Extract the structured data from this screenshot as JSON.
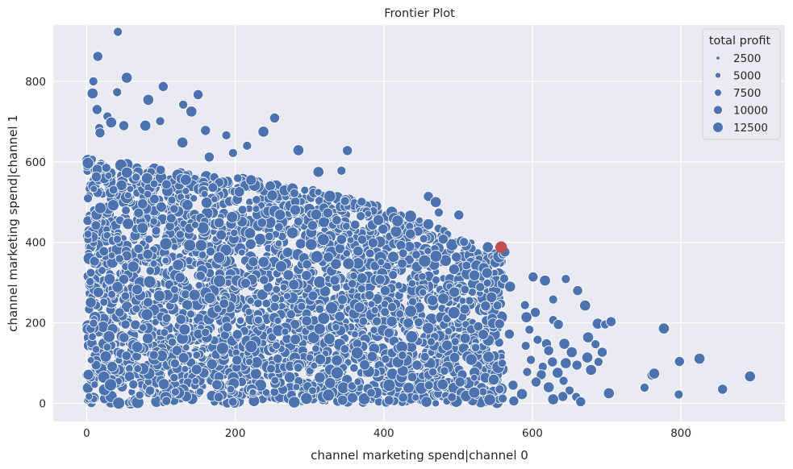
{
  "chart_data": {
    "type": "scatter",
    "title": "Frontier Plot",
    "xlabel": "channel marketing spend|channel 0",
    "ylabel": "channel marketing spend|channel 1",
    "xlim": [
      -45,
      940
    ],
    "ylim": [
      -45,
      940
    ],
    "xticks": [
      0,
      200,
      400,
      600,
      800
    ],
    "yticks": [
      0,
      200,
      400,
      600,
      800
    ],
    "grid": true,
    "style": "seaborn-darkgrid",
    "colors": {
      "background": "#EAEAF2",
      "grid": "#FFFFFF",
      "points": "#4C72B0",
      "highlight": "#C44E52",
      "point_edge": "#FFFFFF"
    },
    "legend": {
      "title": "total profit",
      "placement": "top-right",
      "size_variable": "total profit",
      "entries": [
        {
          "label": "2500",
          "value": 2500
        },
        {
          "label": "5000",
          "value": 5000
        },
        {
          "label": "7500",
          "value": 7500
        },
        {
          "label": "10000",
          "value": 10000
        },
        {
          "label": "12500",
          "value": 12500
        }
      ]
    },
    "highlight_point": {
      "x": 558,
      "y": 388,
      "color": "#C44E52"
    },
    "series": [
      {
        "kind": "dense-cloud",
        "description_of_region": "thousands of points filling the triangular region below the frontier",
        "x_range": [
          0,
          560
        ],
        "y_range": [
          0,
          620
        ],
        "point_count_approx": 3000
      },
      {
        "kind": "scatter",
        "points": [
          {
            "x": 42,
            "y": 923
          },
          {
            "x": 15,
            "y": 862
          },
          {
            "x": 54,
            "y": 809
          },
          {
            "x": 9,
            "y": 800
          },
          {
            "x": 103,
            "y": 787
          },
          {
            "x": 8,
            "y": 770
          },
          {
            "x": 41,
            "y": 773
          },
          {
            "x": 150,
            "y": 767
          },
          {
            "x": 83,
            "y": 754
          },
          {
            "x": 130,
            "y": 742
          },
          {
            "x": 14,
            "y": 730
          },
          {
            "x": 141,
            "y": 725
          },
          {
            "x": 28,
            "y": 713
          },
          {
            "x": 253,
            "y": 709
          },
          {
            "x": 33,
            "y": 698
          },
          {
            "x": 99,
            "y": 701
          },
          {
            "x": 50,
            "y": 690
          },
          {
            "x": 79,
            "y": 690
          },
          {
            "x": 17,
            "y": 684
          },
          {
            "x": 160,
            "y": 678
          },
          {
            "x": 238,
            "y": 675
          },
          {
            "x": 188,
            "y": 666
          },
          {
            "x": 18,
            "y": 672
          },
          {
            "x": 129,
            "y": 648
          },
          {
            "x": 216,
            "y": 640
          },
          {
            "x": 351,
            "y": 628
          },
          {
            "x": 285,
            "y": 629
          },
          {
            "x": 197,
            "y": 622
          },
          {
            "x": 165,
            "y": 612
          },
          {
            "x": 312,
            "y": 575
          },
          {
            "x": 343,
            "y": 578
          },
          {
            "x": 460,
            "y": 514
          },
          {
            "x": 470,
            "y": 500
          },
          {
            "x": 474,
            "y": 474
          },
          {
            "x": 501,
            "y": 468
          },
          {
            "x": 460,
            "y": 445
          },
          {
            "x": 508,
            "y": 401
          },
          {
            "x": 480,
            "y": 408
          },
          {
            "x": 540,
            "y": 388
          },
          {
            "x": 560,
            "y": 370
          },
          {
            "x": 563,
            "y": 376
          },
          {
            "x": 522,
            "y": 318
          },
          {
            "x": 562,
            "y": 310
          },
          {
            "x": 601,
            "y": 314
          },
          {
            "x": 617,
            "y": 305
          },
          {
            "x": 645,
            "y": 309
          },
          {
            "x": 661,
            "y": 280
          },
          {
            "x": 570,
            "y": 290
          },
          {
            "x": 590,
            "y": 244
          },
          {
            "x": 537,
            "y": 242
          },
          {
            "x": 671,
            "y": 243
          },
          {
            "x": 628,
            "y": 258
          },
          {
            "x": 604,
            "y": 226
          },
          {
            "x": 592,
            "y": 214
          },
          {
            "x": 628,
            "y": 207
          },
          {
            "x": 635,
            "y": 196
          },
          {
            "x": 688,
            "y": 198
          },
          {
            "x": 698,
            "y": 196
          },
          {
            "x": 706,
            "y": 203
          },
          {
            "x": 777,
            "y": 186
          },
          {
            "x": 596,
            "y": 183
          },
          {
            "x": 569,
            "y": 172
          },
          {
            "x": 675,
            "y": 164
          },
          {
            "x": 607,
            "y": 158
          },
          {
            "x": 619,
            "y": 148
          },
          {
            "x": 643,
            "y": 148
          },
          {
            "x": 591,
            "y": 143
          },
          {
            "x": 622,
            "y": 131
          },
          {
            "x": 653,
            "y": 127
          },
          {
            "x": 685,
            "y": 147
          },
          {
            "x": 694,
            "y": 127
          },
          {
            "x": 674,
            "y": 114
          },
          {
            "x": 598,
            "y": 108
          },
          {
            "x": 627,
            "y": 103
          },
          {
            "x": 645,
            "y": 100
          },
          {
            "x": 689,
            "y": 103
          },
          {
            "x": 798,
            "y": 104
          },
          {
            "x": 825,
            "y": 111
          },
          {
            "x": 614,
            "y": 91
          },
          {
            "x": 660,
            "y": 95
          },
          {
            "x": 679,
            "y": 83
          },
          {
            "x": 593,
            "y": 78
          },
          {
            "x": 612,
            "y": 71
          },
          {
            "x": 634,
            "y": 76
          },
          {
            "x": 642,
            "y": 56
          },
          {
            "x": 605,
            "y": 53
          },
          {
            "x": 622,
            "y": 40
          },
          {
            "x": 650,
            "y": 32
          },
          {
            "x": 641,
            "y": 17
          },
          {
            "x": 628,
            "y": 10
          },
          {
            "x": 659,
            "y": 16
          },
          {
            "x": 665,
            "y": 4
          },
          {
            "x": 703,
            "y": 25
          },
          {
            "x": 751,
            "y": 39
          },
          {
            "x": 761,
            "y": 70
          },
          {
            "x": 764,
            "y": 74
          },
          {
            "x": 797,
            "y": 22
          },
          {
            "x": 856,
            "y": 35
          },
          {
            "x": 893,
            "y": 67
          },
          {
            "x": 556,
            "y": 35
          },
          {
            "x": 574,
            "y": 45
          },
          {
            "x": 586,
            "y": 23
          },
          {
            "x": 560,
            "y": 12
          },
          {
            "x": 575,
            "y": 6
          },
          {
            "x": 548,
            "y": 59
          }
        ]
      }
    ]
  }
}
